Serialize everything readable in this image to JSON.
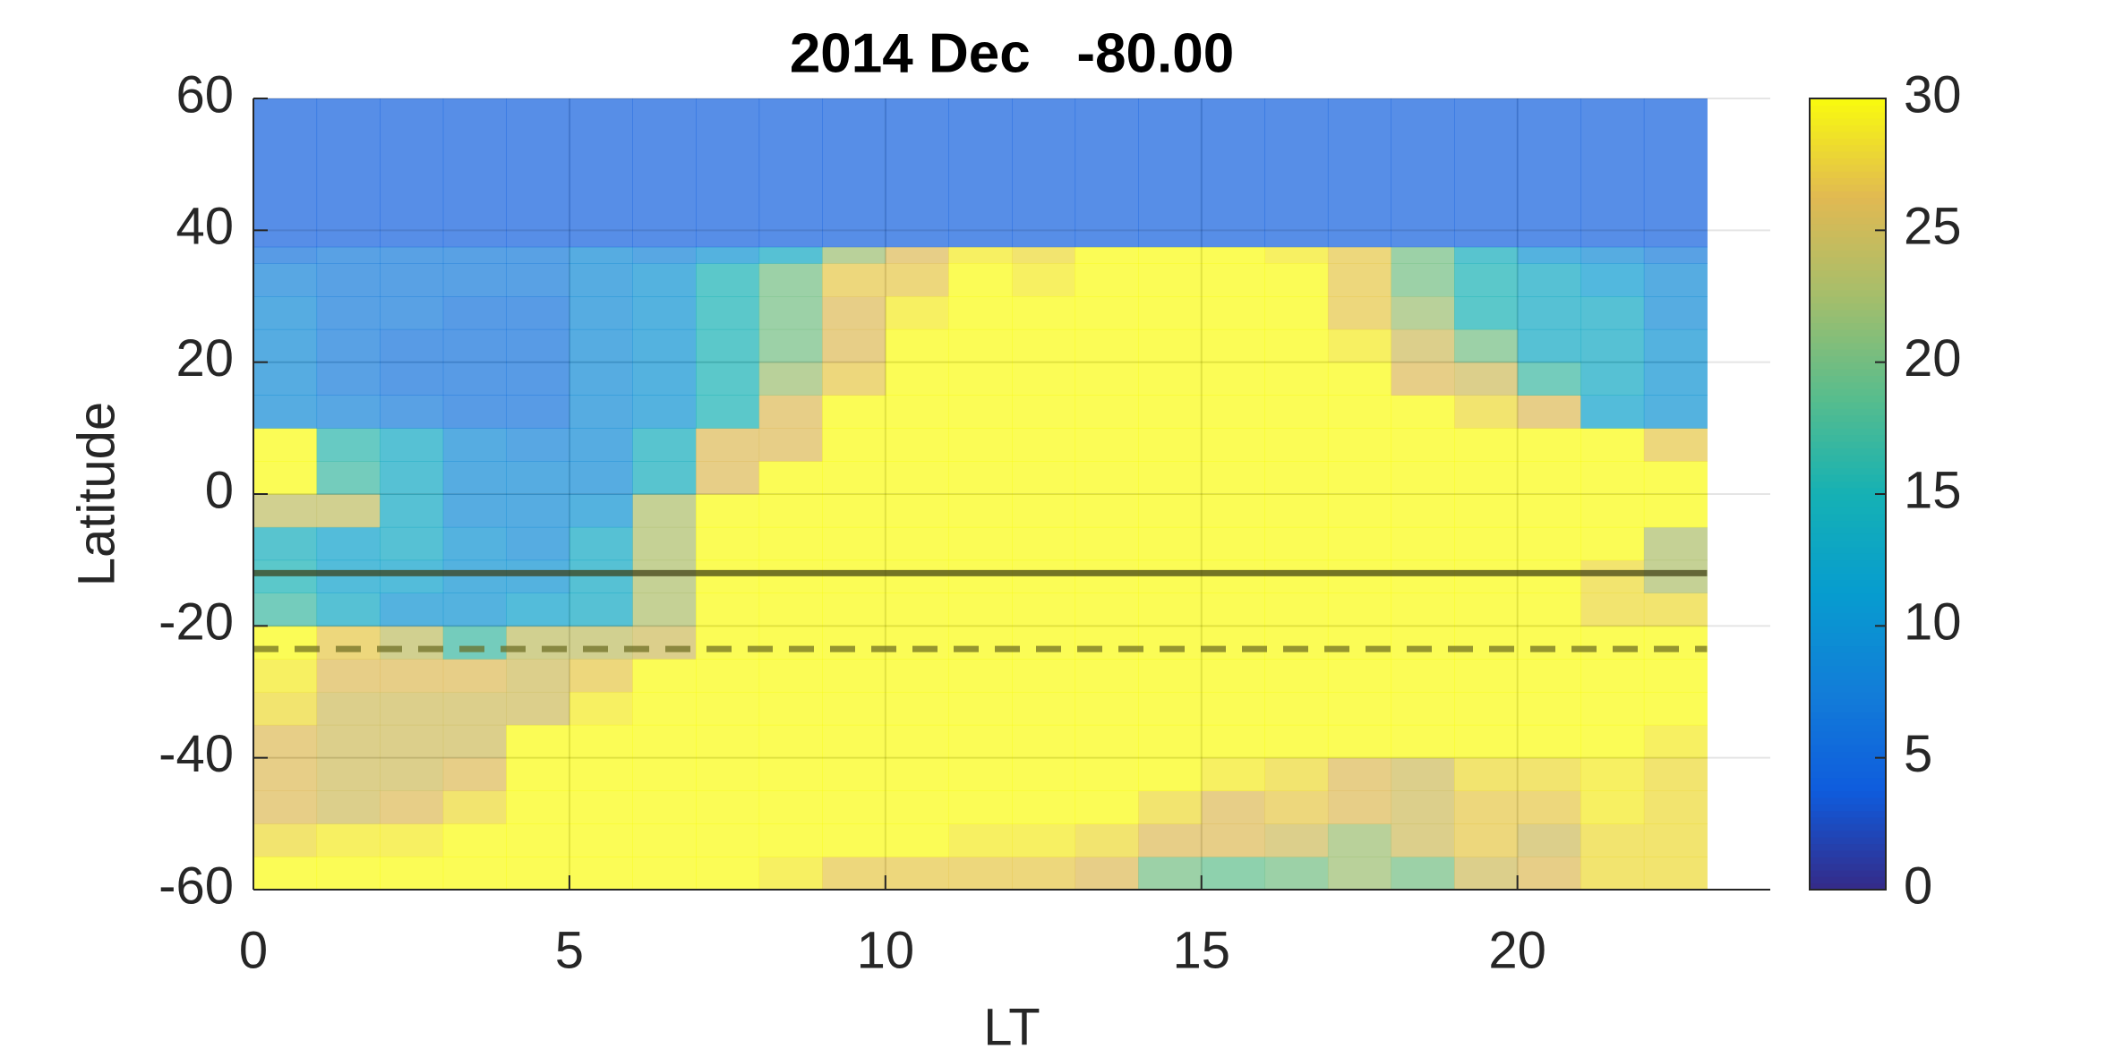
{
  "chart_data": {
    "type": "heatmap",
    "title": "2014 Dec   -80.00",
    "x_label": "LT",
    "y_label": "Latitude",
    "xbins": [
      0,
      1,
      2,
      3,
      4,
      5,
      6,
      7,
      8,
      9,
      10,
      11,
      12,
      13,
      14,
      15,
      16,
      17,
      18,
      19,
      20,
      21,
      22,
      23
    ],
    "ybins": [
      -60,
      -55,
      -50,
      -45,
      -40,
      -35,
      -30,
      -25,
      -20,
      -15,
      -10,
      -5,
      0,
      5,
      10,
      15,
      20,
      25,
      30,
      35,
      37.5,
      60
    ],
    "values": [
      [
        30,
        28,
        26,
        26,
        26,
        28,
        29,
        30,
        17,
        15,
        14,
        24,
        30,
        30,
        9,
        9,
        9,
        9,
        8,
        6,
        4
      ],
      [
        30,
        29,
        25,
        25,
        25,
        25,
        26,
        27,
        13,
        12,
        12,
        24,
        17,
        16,
        8,
        7,
        7,
        7,
        7,
        7,
        4
      ],
      [
        30,
        29,
        26,
        25,
        25,
        25,
        26,
        24,
        10,
        12,
        13,
        13,
        13,
        13,
        7,
        6,
        6,
        7,
        7,
        7,
        4
      ],
      [
        30,
        30,
        28,
        26,
        25,
        25,
        26,
        17,
        10,
        10,
        10,
        9,
        9,
        9,
        6,
        6,
        6,
        6,
        7,
        7,
        4
      ],
      [
        30,
        30,
        30,
        30,
        30,
        25,
        25,
        24,
        12,
        10,
        9,
        9,
        9,
        8,
        6,
        6,
        6,
        6,
        7,
        7,
        4
      ],
      [
        30,
        30,
        30,
        30,
        30,
        29,
        27,
        24,
        13,
        13,
        13,
        10,
        9,
        9,
        9,
        9,
        9,
        9,
        9,
        9,
        4
      ],
      [
        30,
        30,
        30,
        30,
        30,
        30,
        30,
        25,
        23,
        23,
        23,
        23,
        14,
        14,
        10,
        10,
        10,
        10,
        10,
        8,
        4
      ],
      [
        30,
        30,
        30,
        30,
        30,
        30,
        30,
        30,
        30,
        30,
        30,
        30,
        26,
        26,
        15,
        15,
        15,
        15,
        15,
        10,
        4
      ],
      [
        29,
        30,
        30,
        30,
        30,
        30,
        30,
        30,
        30,
        30,
        30,
        30,
        30,
        26,
        26,
        22,
        20,
        20,
        20,
        13,
        4
      ],
      [
        27,
        30,
        30,
        30,
        30,
        30,
        30,
        30,
        30,
        30,
        30,
        30,
        30,
        30,
        30,
        27,
        26,
        26,
        27,
        22,
        4
      ],
      [
        27,
        30,
        30,
        30,
        30,
        30,
        30,
        30,
        30,
        30,
        30,
        30,
        30,
        30,
        30,
        30,
        30,
        29,
        27,
        26,
        4
      ],
      [
        27,
        29,
        30,
        30,
        30,
        30,
        30,
        30,
        30,
        30,
        30,
        30,
        30,
        30,
        30,
        30,
        30,
        30,
        30,
        29,
        4
      ],
      [
        27,
        29,
        30,
        30,
        30,
        30,
        30,
        30,
        30,
        30,
        30,
        30,
        30,
        30,
        30,
        30,
        30,
        30,
        29,
        28,
        4
      ],
      [
        26,
        28,
        30,
        30,
        30,
        30,
        30,
        30,
        30,
        30,
        30,
        30,
        30,
        30,
        30,
        30,
        30,
        30,
        30,
        30,
        4
      ],
      [
        20,
        26,
        28,
        30,
        30,
        30,
        30,
        30,
        30,
        30,
        30,
        30,
        30,
        30,
        30,
        30,
        30,
        30,
        30,
        30,
        4
      ],
      [
        19,
        26,
        26,
        29,
        30,
        30,
        30,
        30,
        30,
        30,
        30,
        30,
        30,
        30,
        30,
        30,
        30,
        30,
        30,
        30,
        4
      ],
      [
        20,
        25,
        27,
        28,
        30,
        30,
        30,
        30,
        30,
        30,
        30,
        30,
        30,
        30,
        30,
        30,
        30,
        30,
        30,
        29,
        4
      ],
      [
        22,
        22,
        26,
        26,
        30,
        30,
        30,
        30,
        30,
        30,
        30,
        30,
        30,
        30,
        30,
        30,
        29,
        27,
        27,
        27,
        4
      ],
      [
        20,
        25,
        25,
        25,
        30,
        30,
        30,
        30,
        30,
        30,
        30,
        30,
        30,
        30,
        30,
        26,
        25,
        22,
        20,
        20,
        4
      ],
      [
        25,
        27,
        27,
        28,
        30,
        30,
        30,
        30,
        30,
        30,
        30,
        30,
        30,
        30,
        28,
        25,
        20,
        15,
        15,
        14,
        4
      ],
      [
        26,
        25,
        27,
        28,
        30,
        30,
        30,
        30,
        30,
        30,
        30,
        30,
        30,
        30,
        26,
        17,
        13,
        13,
        13,
        10,
        4
      ],
      [
        28,
        28,
        29,
        29,
        30,
        30,
        30,
        30,
        28,
        28,
        30,
        30,
        30,
        30,
        12,
        13,
        13,
        13,
        11,
        9,
        4
      ],
      [
        28,
        28,
        28,
        28,
        29,
        30,
        30,
        30,
        28,
        23,
        23,
        30,
        30,
        27,
        10,
        10,
        10,
        9,
        9,
        7,
        4
      ]
    ],
    "xlim": [
      0,
      24
    ],
    "xticks": [
      0,
      5,
      10,
      15,
      20
    ],
    "ylim": [
      -60,
      60
    ],
    "yticks": [
      -60,
      -40,
      -20,
      0,
      20,
      40,
      60
    ],
    "clim": [
      0,
      30
    ],
    "cticks": [
      0,
      5,
      10,
      15,
      20,
      25,
      30
    ],
    "colormap": "parula",
    "cell_opacity": 0.7,
    "grid": true,
    "lines": [
      {
        "y": -12,
        "style": "solid",
        "color": "#3a3a10"
      },
      {
        "y": -23.5,
        "style": "dashed",
        "color": "#6a6a20"
      }
    ]
  }
}
